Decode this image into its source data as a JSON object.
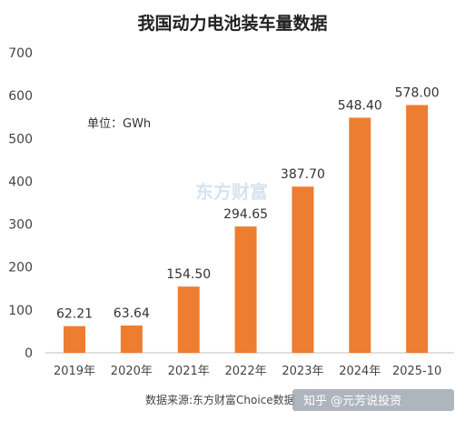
{
  "chart_data": {
    "type": "bar",
    "title": "我国动力电池装车量数据",
    "unit_label": "单位：GWh",
    "categories": [
      "2019年",
      "2020年",
      "2021年",
      "2022年",
      "2023年",
      "2024年",
      "2025-10"
    ],
    "values": [
      62.21,
      63.64,
      154.5,
      294.65,
      387.7,
      548.4,
      578.0
    ],
    "value_labels": [
      "62.21",
      "63.64",
      "154.50",
      "294.65",
      "387.70",
      "548.40",
      "578.00"
    ],
    "ylim": [
      0,
      700
    ],
    "yticks": [
      0,
      100,
      200,
      300,
      400,
      500,
      600,
      700
    ],
    "grid": false,
    "bar_color": "#ED7D31",
    "source": "数据来源:东方财富Choice数据",
    "watermark": "东方财富",
    "footer": "知乎 @元芳说投资"
  }
}
